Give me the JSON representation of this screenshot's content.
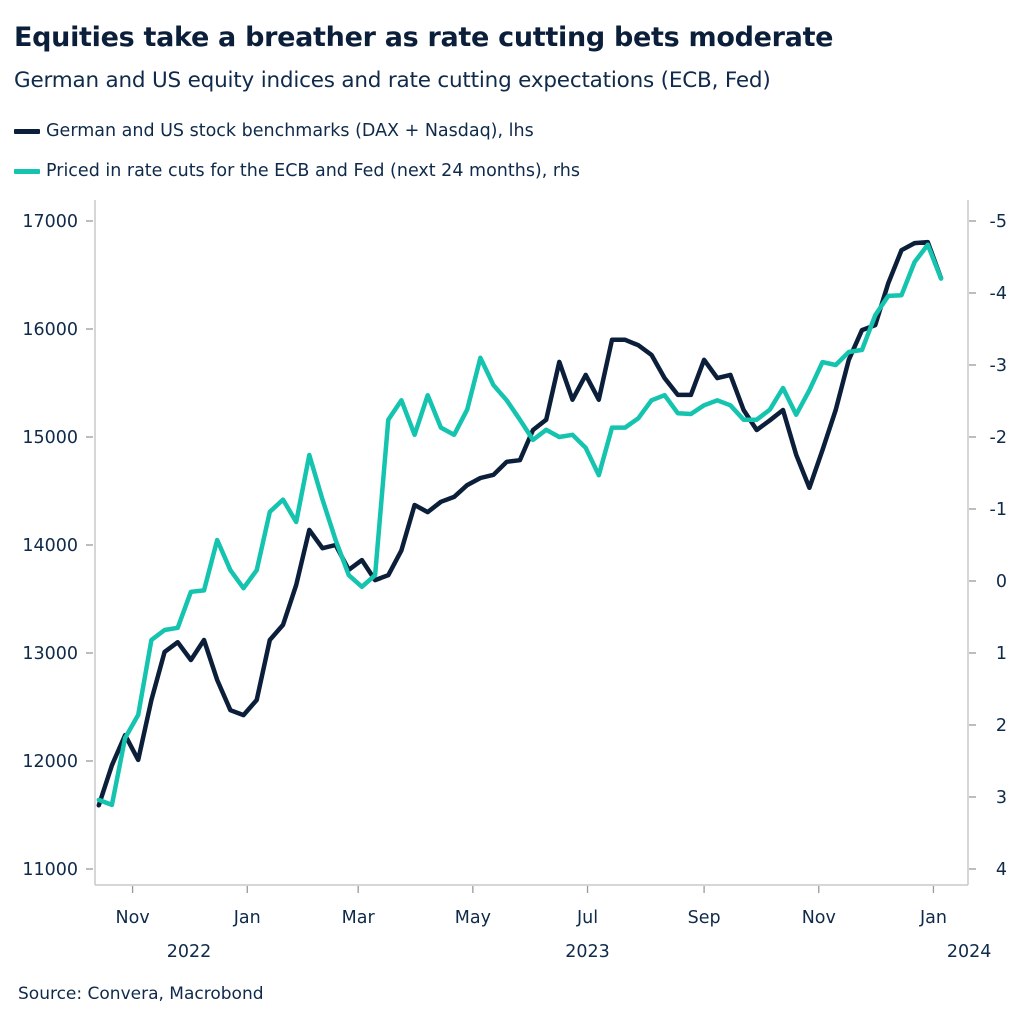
{
  "title": "Equities take a breather as rate cutting bets moderate",
  "subtitle": "German and US equity indices and rate cutting expectations (ECB, Fed)",
  "source": "Source: Convera, Macrobond",
  "colors": {
    "equities": "#0b1f3a",
    "rate_cuts": "#14c4ae",
    "axis": "#c8c8c8",
    "text": "#0f2a4a"
  },
  "chart_data": {
    "type": "line",
    "title": "Equities take a breather as rate cutting bets moderate",
    "legend_position": "top-left",
    "grid": false,
    "x": [
      "2022-10-14",
      "2022-10-21",
      "2022-10-28",
      "2022-11-04",
      "2022-11-11",
      "2022-11-18",
      "2022-11-25",
      "2022-12-02",
      "2022-12-09",
      "2022-12-16",
      "2022-12-23",
      "2022-12-30",
      "2023-01-06",
      "2023-01-13",
      "2023-01-20",
      "2023-01-27",
      "2023-02-03",
      "2023-02-10",
      "2023-02-17",
      "2023-02-24",
      "2023-03-03",
      "2023-03-10",
      "2023-03-17",
      "2023-03-24",
      "2023-03-31",
      "2023-04-07",
      "2023-04-14",
      "2023-04-21",
      "2023-04-28",
      "2023-05-05",
      "2023-05-12",
      "2023-05-19",
      "2023-05-26",
      "2023-06-02",
      "2023-06-09",
      "2023-06-16",
      "2023-06-23",
      "2023-06-30",
      "2023-07-07",
      "2023-07-14",
      "2023-07-21",
      "2023-07-28",
      "2023-08-04",
      "2023-08-11",
      "2023-08-18",
      "2023-08-25",
      "2023-09-01",
      "2023-09-08",
      "2023-09-15",
      "2023-09-22",
      "2023-09-29",
      "2023-10-06",
      "2023-10-13",
      "2023-10-20",
      "2023-10-27",
      "2023-11-03",
      "2023-11-10",
      "2023-11-17",
      "2023-11-24",
      "2023-12-01",
      "2023-12-08",
      "2023-12-15",
      "2023-12-22",
      "2023-12-29",
      "2024-01-05"
    ],
    "x_ticks": [
      {
        "label": "Nov",
        "date": "2022-11-01"
      },
      {
        "label": "Jan",
        "date": "2023-01-01"
      },
      {
        "label": "Mar",
        "date": "2023-03-01"
      },
      {
        "label": "May",
        "date": "2023-05-01"
      },
      {
        "label": "Jul",
        "date": "2023-07-01"
      },
      {
        "label": "Sep",
        "date": "2023-09-01"
      },
      {
        "label": "Nov",
        "date": "2023-11-01"
      },
      {
        "label": "Jan",
        "date": "2024-01-01"
      }
    ],
    "x_year_labels": [
      {
        "label": "2022",
        "date": "2022-12-01"
      },
      {
        "label": "2023",
        "date": "2023-07-01"
      },
      {
        "label": "2024",
        "date": "2024-01-20"
      }
    ],
    "xlim": [
      "2022-10-12",
      "2024-01-13"
    ],
    "y_left": {
      "ylim": [
        11000,
        17000
      ],
      "ticks": [
        11000,
        12000,
        13000,
        14000,
        15000,
        16000,
        17000
      ],
      "inverted": false
    },
    "y_right": {
      "ylim": [
        4,
        -5
      ],
      "ticks": [
        4,
        3,
        2,
        1,
        0,
        -1,
        -2,
        -3,
        -4,
        -5
      ],
      "inverted": true
    },
    "series": [
      {
        "name": "German and US stock benchmarks (DAX + Nasdaq), lhs",
        "axis": "left",
        "color": "#0b1f3a",
        "values": [
          11590,
          11960,
          12240,
          12010,
          12565,
          13010,
          13100,
          12935,
          13120,
          12750,
          12470,
          12425,
          12565,
          13120,
          13260,
          13630,
          14140,
          13970,
          14000,
          13770,
          13860,
          13675,
          13720,
          13950,
          14370,
          14305,
          14400,
          14445,
          14555,
          14620,
          14650,
          14770,
          14785,
          15065,
          15160,
          15695,
          15345,
          15575,
          15345,
          15900,
          15900,
          15850,
          15760,
          15545,
          15390,
          15390,
          15715,
          15545,
          15575,
          15250,
          15065,
          15155,
          15250,
          14835,
          14530,
          14880,
          15250,
          15715,
          15990,
          16035,
          16425,
          16730,
          16795,
          16805,
          16470
        ]
      },
      {
        "name": "Priced in rate cuts for the ECB and Fed (next 24 months), rhs",
        "axis": "right",
        "color": "#14c4ae",
        "values": [
          3.04,
          3.11,
          2.18,
          1.86,
          0.82,
          0.68,
          0.65,
          0.15,
          0.13,
          -0.57,
          -0.15,
          0.1,
          -0.15,
          -0.96,
          -1.13,
          -0.82,
          -1.75,
          -1.13,
          -0.57,
          -0.08,
          0.08,
          -0.08,
          -2.24,
          -2.51,
          -2.03,
          -2.58,
          -2.13,
          -2.03,
          -2.38,
          -3.1,
          -2.72,
          -2.51,
          -2.24,
          -1.96,
          -2.1,
          -2.0,
          -2.03,
          -1.85,
          -1.47,
          -2.13,
          -2.13,
          -2.26,
          -2.51,
          -2.58,
          -2.33,
          -2.32,
          -2.44,
          -2.51,
          -2.44,
          -2.24,
          -2.24,
          -2.38,
          -2.68,
          -2.31,
          -2.65,
          -3.04,
          -3.0,
          -3.18,
          -3.21,
          -3.69,
          -3.96,
          -3.97,
          -4.43,
          -4.67,
          -4.2
        ]
      }
    ]
  }
}
